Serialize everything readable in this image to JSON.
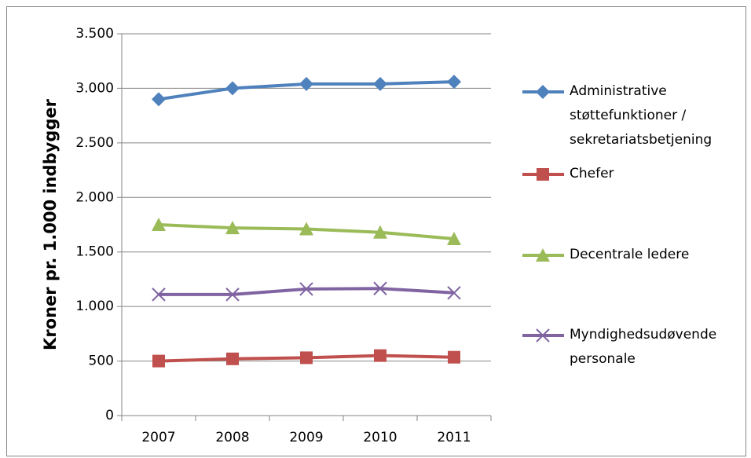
{
  "chart_data": {
    "type": "line",
    "y_label": "Kroner pr. 1.000 indbygger",
    "categories": [
      "2007",
      "2008",
      "2009",
      "2010",
      "2011"
    ],
    "series": [
      {
        "name": "Administrative støttefunktioner / sekretariatsbetjening",
        "color": "#4f81bd",
        "marker": "diamond",
        "values": [
          2900,
          3000,
          3040,
          3040,
          3060
        ]
      },
      {
        "name": "Chefer",
        "color": "#c0504d",
        "marker": "square",
        "values": [
          500,
          520,
          530,
          550,
          535
        ]
      },
      {
        "name": "Decentrale ledere",
        "color": "#9bbb59",
        "marker": "triangle",
        "values": [
          1750,
          1720,
          1710,
          1680,
          1620
        ]
      },
      {
        "name": "Myndighedsudøvende personale",
        "color": "#8064a2",
        "marker": "x",
        "values": [
          1110,
          1110,
          1160,
          1165,
          1125
        ]
      }
    ],
    "ylim": [
      0,
      3500
    ],
    "yticks": [
      0,
      500,
      {
        "value": 1000,
        "label": "1.000"
      },
      {
        "value": 1500,
        "label": "1.500"
      },
      {
        "value": 2000,
        "label": "2.000"
      },
      {
        "value": 2500,
        "label": "2.500"
      },
      {
        "value": 3000,
        "label": "3.000"
      },
      {
        "value": 3500,
        "label": "3.500"
      }
    ],
    "grid": true,
    "legend": "right"
  }
}
